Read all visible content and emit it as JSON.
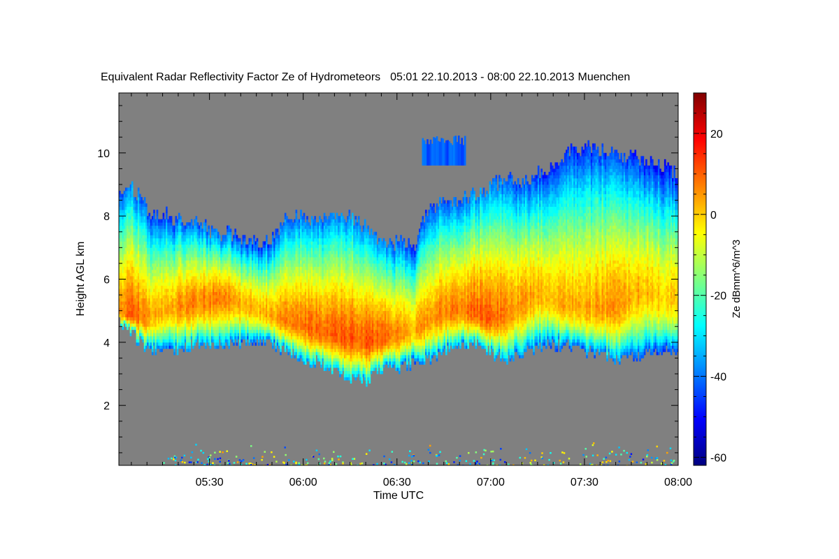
{
  "chart_data": {
    "type": "heatmap",
    "title": "Equivalent Radar Reflectivity Factor Ze of Hydrometeors",
    "period": "05:01 22.10.2013 - 08:00 22.10.2013",
    "station": "Muenchen",
    "xlabel": "Time UTC",
    "ylabel": "Height AGL km",
    "colorbar_label": "Ze dBmm^6/m^3",
    "xlim_minutes_utc": [
      301,
      480
    ],
    "ylim_km": [
      0.1,
      11.9
    ],
    "zlim_dbz": [
      -62,
      30
    ],
    "x_ticks": [
      {
        "minute": 330,
        "label": "05:30"
      },
      {
        "minute": 360,
        "label": "06:00"
      },
      {
        "minute": 390,
        "label": "06:30"
      },
      {
        "minute": 420,
        "label": "07:00"
      },
      {
        "minute": 450,
        "label": "07:30"
      },
      {
        "minute": 480,
        "label": "08:00"
      }
    ],
    "y_ticks": [
      {
        "value": 2,
        "label": "2"
      },
      {
        "value": 4,
        "label": "4"
      },
      {
        "value": 6,
        "label": "6"
      },
      {
        "value": 8,
        "label": "8"
      },
      {
        "value": 10,
        "label": "10"
      }
    ],
    "colorbar_ticks": [
      {
        "value": 20,
        "label": "20"
      },
      {
        "value": 0,
        "label": "0"
      },
      {
        "value": -20,
        "label": "-20"
      },
      {
        "value": -40,
        "label": "-40"
      },
      {
        "value": -60,
        "label": "-60"
      }
    ],
    "colormap": [
      "#000080",
      "#0000ff",
      "#0080ff",
      "#00ffff",
      "#80ff80",
      "#ffff00",
      "#ff8000",
      "#ff0000",
      "#800000"
    ],
    "no_echo_color": "#808080",
    "cloud_layer": {
      "minutes": [
        301,
        305,
        310,
        315,
        320,
        325,
        330,
        335,
        340,
        345,
        350,
        355,
        360,
        365,
        370,
        375,
        380,
        385,
        390,
        395,
        400,
        405,
        410,
        415,
        420,
        425,
        430,
        435,
        440,
        445,
        450,
        455,
        460,
        465,
        470,
        475,
        480
      ],
      "top_km": [
        8.6,
        8.9,
        8.1,
        8.0,
        7.8,
        7.7,
        7.5,
        7.4,
        7.3,
        7.2,
        7.3,
        7.9,
        8.0,
        7.8,
        8.1,
        7.9,
        7.6,
        7.1,
        7.1,
        7.0,
        8.2,
        8.4,
        8.5,
        8.7,
        8.9,
        9.1,
        9.0,
        9.3,
        9.6,
        10.0,
        10.1,
        10.0,
        9.9,
        9.8,
        9.7,
        9.5,
        9.3
      ],
      "base_km": [
        4.6,
        4.2,
        3.7,
        3.6,
        3.7,
        3.9,
        3.9,
        3.9,
        3.9,
        3.9,
        3.9,
        3.6,
        3.4,
        3.3,
        3.0,
        2.8,
        2.7,
        3.1,
        3.1,
        3.3,
        3.4,
        3.7,
        3.8,
        3.9,
        3.6,
        3.4,
        3.6,
        3.8,
        3.9,
        3.8,
        3.7,
        3.6,
        3.4,
        3.5,
        3.6,
        3.7,
        3.7
      ],
      "core_km": [
        4.9,
        4.8,
        4.7,
        5.0,
        5.1,
        5.2,
        5.3,
        5.4,
        5.2,
        5.0,
        4.8,
        4.6,
        4.5,
        4.3,
        4.2,
        4.1,
        4.0,
        4.1,
        4.2,
        4.3,
        4.6,
        4.9,
        5.0,
        4.9,
        4.7,
        4.9,
        5.2,
        5.5,
        5.3,
        5.1,
        5.0,
        5.0,
        5.1,
        5.4,
        5.6,
        5.3,
        5.4
      ],
      "max_ze_dbz": [
        6,
        10,
        4,
        2,
        5,
        7,
        7,
        6,
        3,
        2,
        4,
        6,
        8,
        9,
        10,
        11,
        10,
        9,
        6,
        3,
        5,
        7,
        8,
        10,
        10,
        7,
        4,
        3,
        3,
        2,
        3,
        4,
        5,
        3,
        2,
        0,
        -1
      ]
    },
    "detached_echoes": [
      {
        "minutes": [
          398,
          412
        ],
        "top_km": 10.4,
        "base_km": 9.6,
        "ze_dbz": -42
      }
    ],
    "ground_clutter": {
      "height_km": [
        0.1,
        0.9
      ],
      "ze_dbz_range": [
        -50,
        5
      ]
    }
  }
}
